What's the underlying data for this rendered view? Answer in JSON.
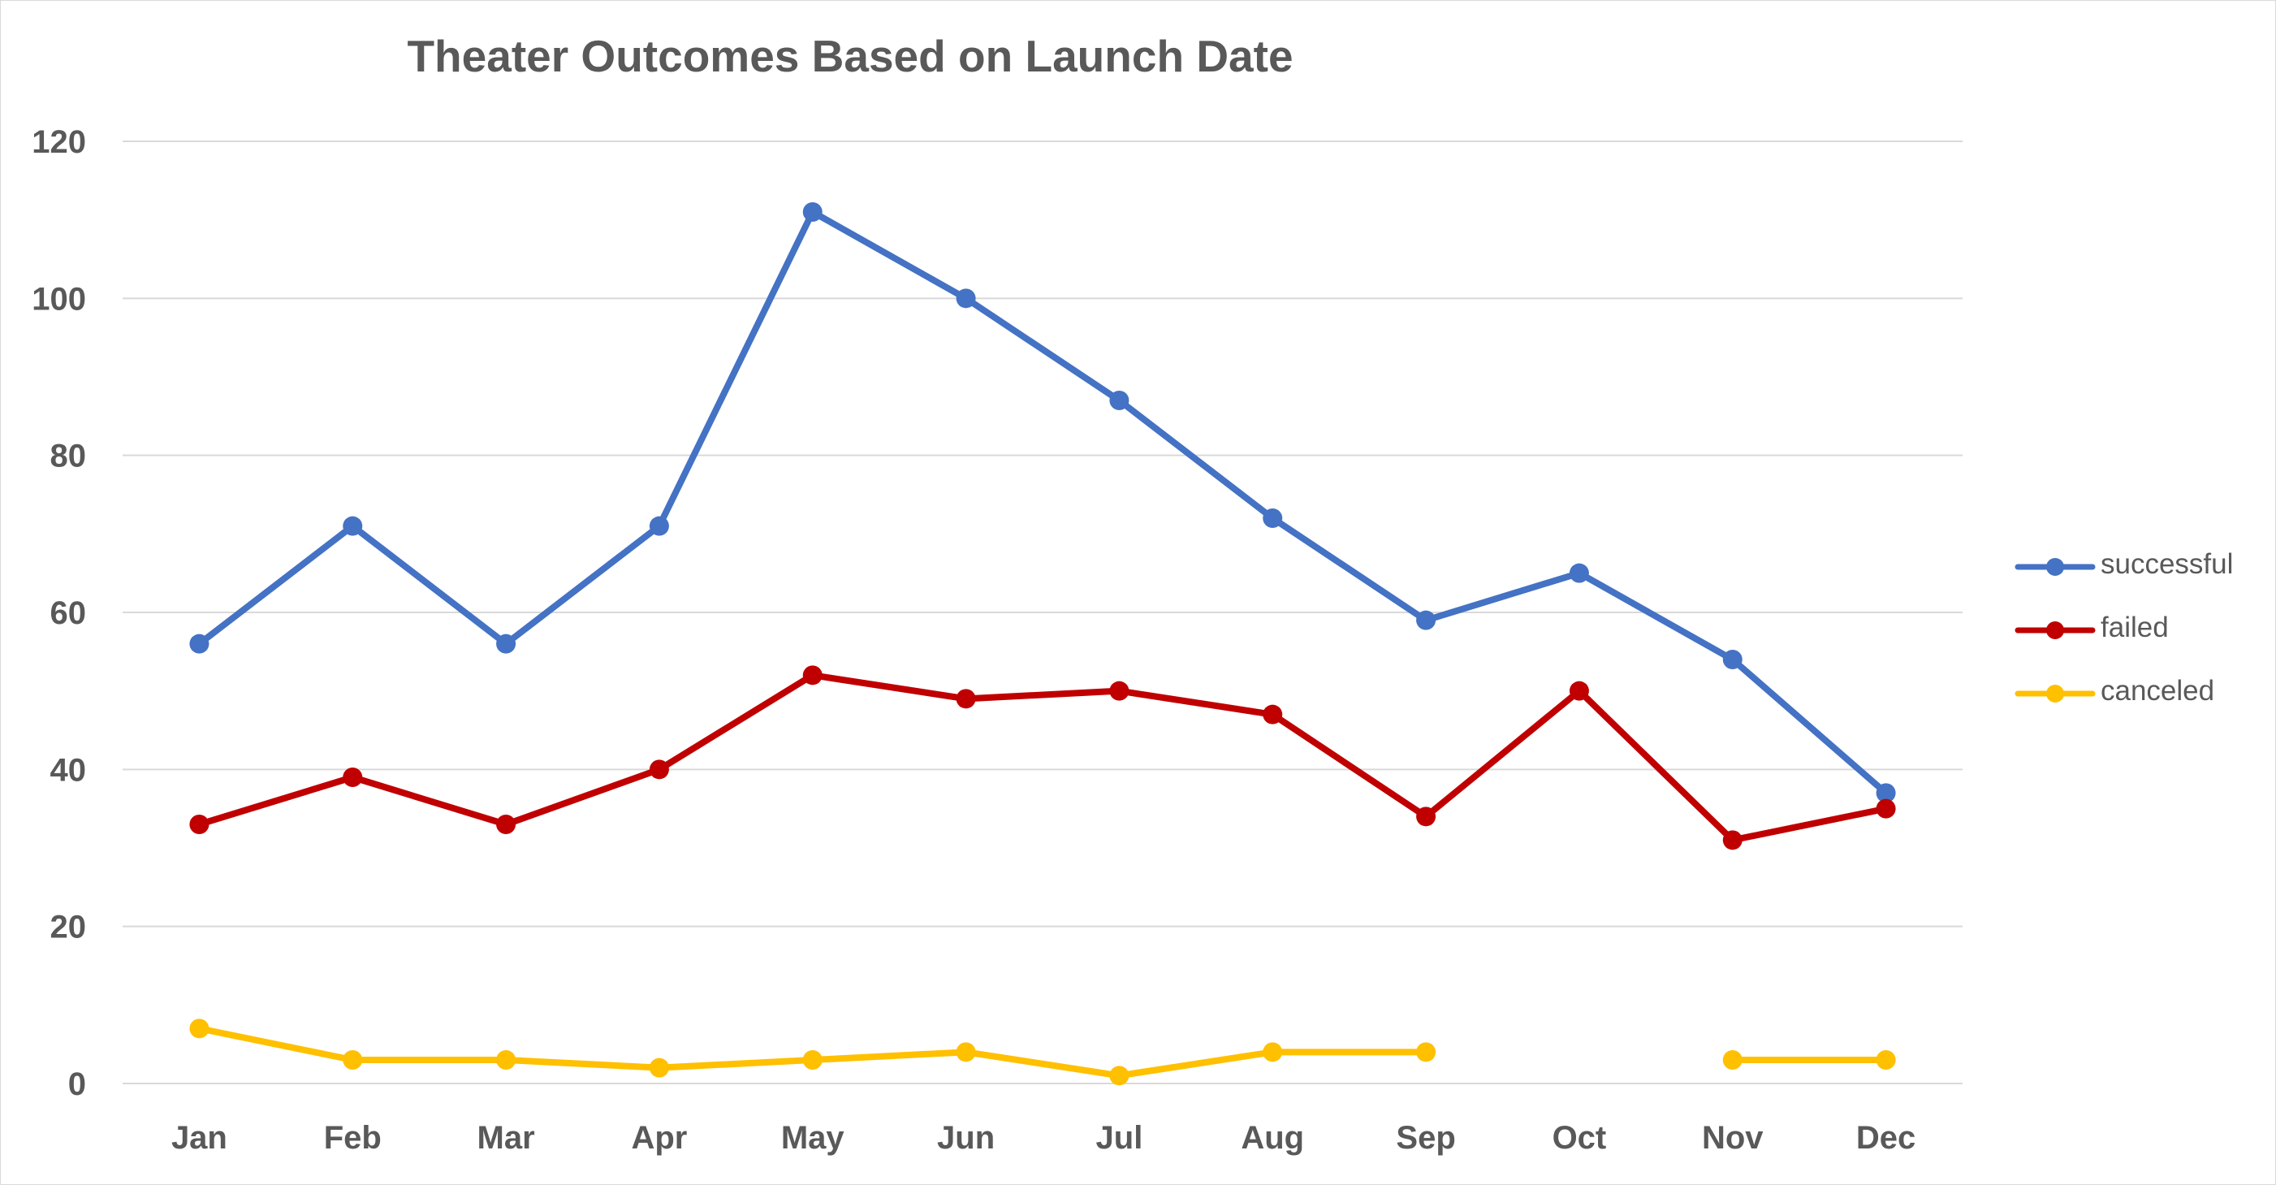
{
  "chart_data": {
    "type": "line",
    "title": "Theater Outcomes Based on Launch Date",
    "xlabel": "",
    "ylabel": "",
    "categories": [
      "Jan",
      "Feb",
      "Mar",
      "Apr",
      "May",
      "Jun",
      "Jul",
      "Aug",
      "Sep",
      "Oct",
      "Nov",
      "Dec"
    ],
    "ylim": [
      0,
      120
    ],
    "yticks": [
      "0",
      "20",
      "40",
      "60",
      "80",
      "100",
      "120"
    ],
    "grid": true,
    "legend_position": "right",
    "series": [
      {
        "name": "successful",
        "color": "#4472c4",
        "values": [
          56,
          71,
          56,
          71,
          111,
          100,
          87,
          72,
          59,
          65,
          54,
          37
        ]
      },
      {
        "name": "failed",
        "color": "#c00000",
        "values": [
          33,
          39,
          33,
          40,
          52,
          49,
          50,
          47,
          34,
          50,
          31,
          35
        ]
      },
      {
        "name": "canceled",
        "color": "#ffc000",
        "values": [
          7,
          3,
          3,
          2,
          3,
          4,
          1,
          4,
          4,
          null,
          3,
          3
        ]
      }
    ]
  }
}
